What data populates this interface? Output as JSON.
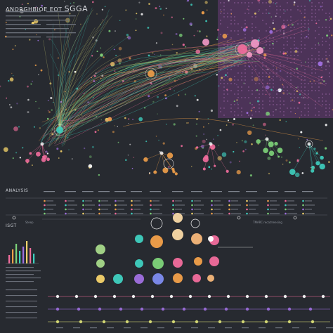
{
  "header": {
    "title_left": "ANORGHBIOE EOT",
    "title_right": "SGGA"
  },
  "sections": {
    "analysis_label": "ANALYSIS",
    "bottom_label": "ISGT",
    "bottom_left_caption": "Steep",
    "bottom_right_caption": "TMARC recatrreesing"
  },
  "colors": {
    "background": "#272a30",
    "teal": "#3fd0c0",
    "green": "#7ed47a",
    "orange": "#f2a04a",
    "pink": "#f26d9d",
    "purple": "#a070e0",
    "magenta_panel": "#6b3a7a"
  }
}
